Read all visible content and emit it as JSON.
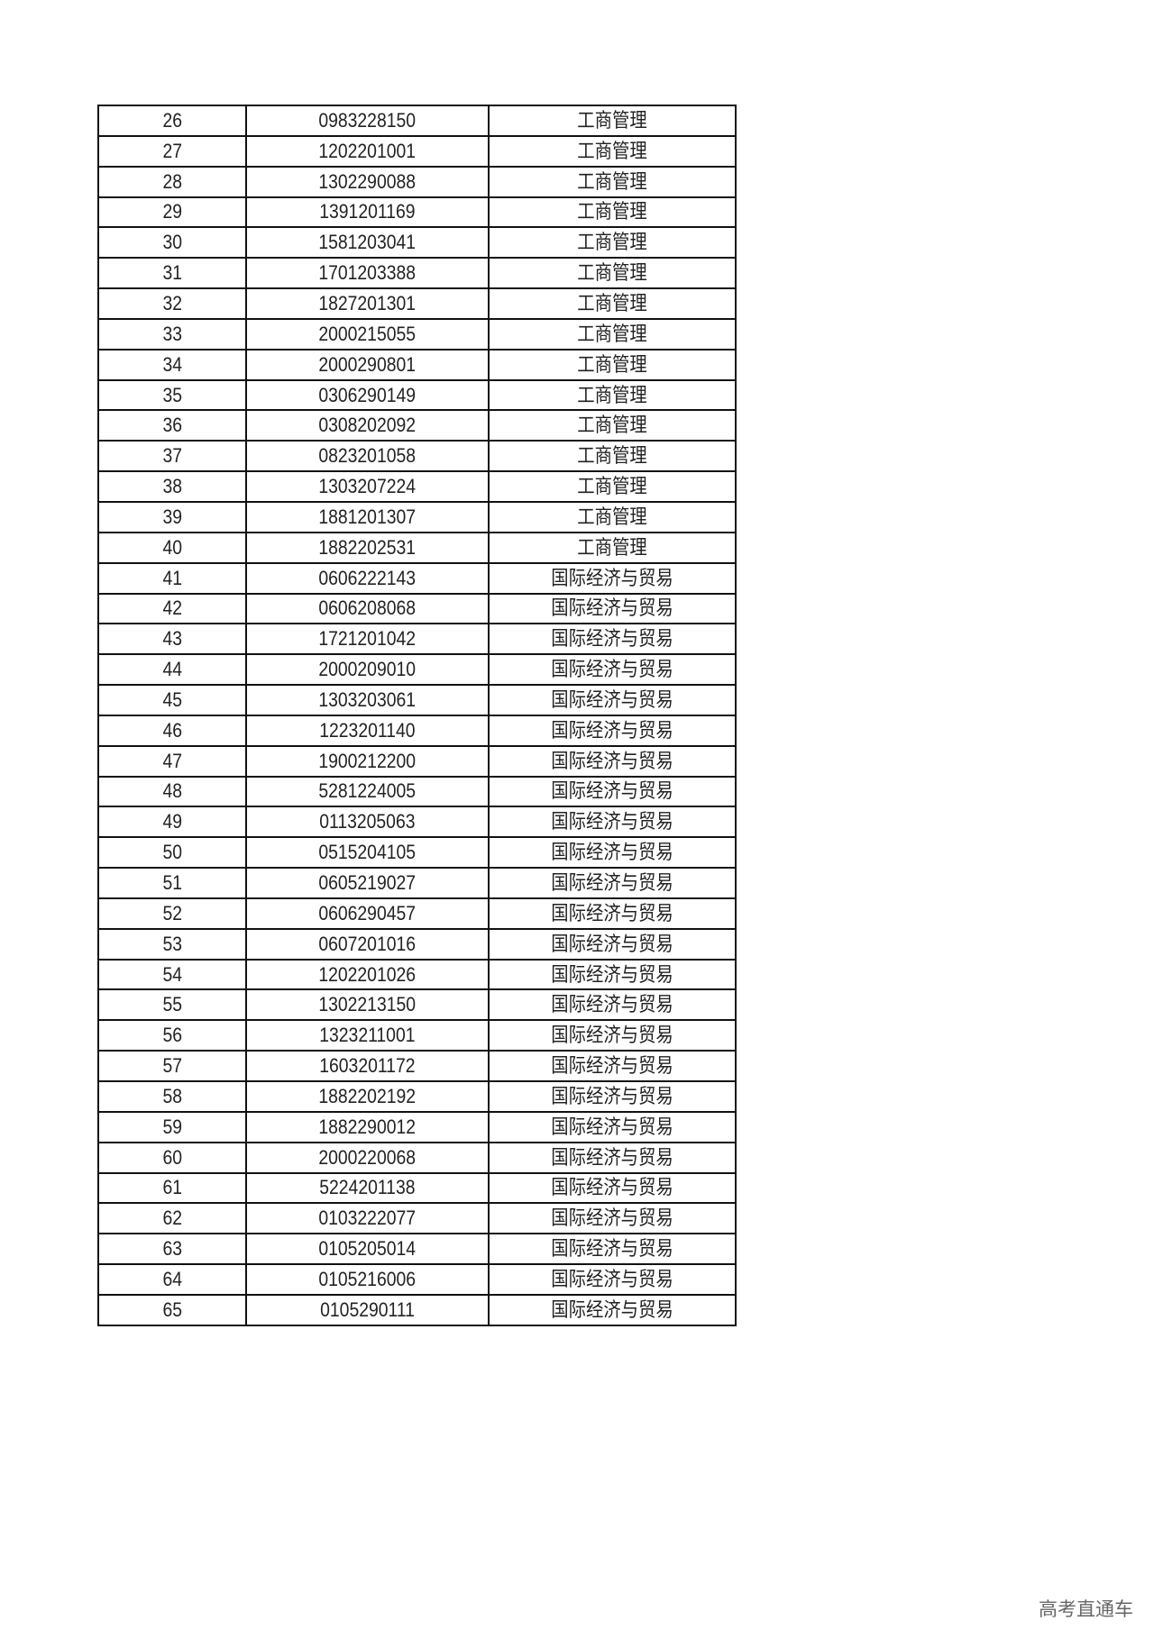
{
  "table": {
    "rows": [
      {
        "no": "26",
        "id": "0983228150",
        "major": "工商管理"
      },
      {
        "no": "27",
        "id": "1202201001",
        "major": "工商管理"
      },
      {
        "no": "28",
        "id": "1302290088",
        "major": "工商管理"
      },
      {
        "no": "29",
        "id": "1391201169",
        "major": "工商管理"
      },
      {
        "no": "30",
        "id": "1581203041",
        "major": "工商管理"
      },
      {
        "no": "31",
        "id": "1701203388",
        "major": "工商管理"
      },
      {
        "no": "32",
        "id": "1827201301",
        "major": "工商管理"
      },
      {
        "no": "33",
        "id": "2000215055",
        "major": "工商管理"
      },
      {
        "no": "34",
        "id": "2000290801",
        "major": "工商管理"
      },
      {
        "no": "35",
        "id": "0306290149",
        "major": "工商管理"
      },
      {
        "no": "36",
        "id": "0308202092",
        "major": "工商管理"
      },
      {
        "no": "37",
        "id": "0823201058",
        "major": "工商管理"
      },
      {
        "no": "38",
        "id": "1303207224",
        "major": "工商管理"
      },
      {
        "no": "39",
        "id": "1881201307",
        "major": "工商管理"
      },
      {
        "no": "40",
        "id": "1882202531",
        "major": "工商管理"
      },
      {
        "no": "41",
        "id": "0606222143",
        "major": "国际经济与贸易"
      },
      {
        "no": "42",
        "id": "0606208068",
        "major": "国际经济与贸易"
      },
      {
        "no": "43",
        "id": "1721201042",
        "major": "国际经济与贸易"
      },
      {
        "no": "44",
        "id": "2000209010",
        "major": "国际经济与贸易"
      },
      {
        "no": "45",
        "id": "1303203061",
        "major": "国际经济与贸易"
      },
      {
        "no": "46",
        "id": "1223201140",
        "major": "国际经济与贸易"
      },
      {
        "no": "47",
        "id": "1900212200",
        "major": "国际经济与贸易"
      },
      {
        "no": "48",
        "id": "5281224005",
        "major": "国际经济与贸易"
      },
      {
        "no": "49",
        "id": "0113205063",
        "major": "国际经济与贸易"
      },
      {
        "no": "50",
        "id": "0515204105",
        "major": "国际经济与贸易"
      },
      {
        "no": "51",
        "id": "0605219027",
        "major": "国际经济与贸易"
      },
      {
        "no": "52",
        "id": "0606290457",
        "major": "国际经济与贸易"
      },
      {
        "no": "53",
        "id": "0607201016",
        "major": "国际经济与贸易"
      },
      {
        "no": "54",
        "id": "1202201026",
        "major": "国际经济与贸易"
      },
      {
        "no": "55",
        "id": "1302213150",
        "major": "国际经济与贸易"
      },
      {
        "no": "56",
        "id": "1323211001",
        "major": "国际经济与贸易"
      },
      {
        "no": "57",
        "id": "1603201172",
        "major": "国际经济与贸易"
      },
      {
        "no": "58",
        "id": "1882202192",
        "major": "国际经济与贸易"
      },
      {
        "no": "59",
        "id": "1882290012",
        "major": "国际经济与贸易"
      },
      {
        "no": "60",
        "id": "2000220068",
        "major": "国际经济与贸易"
      },
      {
        "no": "61",
        "id": "5224201138",
        "major": "国际经济与贸易"
      },
      {
        "no": "62",
        "id": "0103222077",
        "major": "国际经济与贸易"
      },
      {
        "no": "63",
        "id": "0105205014",
        "major": "国际经济与贸易"
      },
      {
        "no": "64",
        "id": "0105216006",
        "major": "国际经济与贸易"
      },
      {
        "no": "65",
        "id": "0105290111",
        "major": "国际经济与贸易"
      }
    ]
  },
  "watermark": "高考直通车"
}
